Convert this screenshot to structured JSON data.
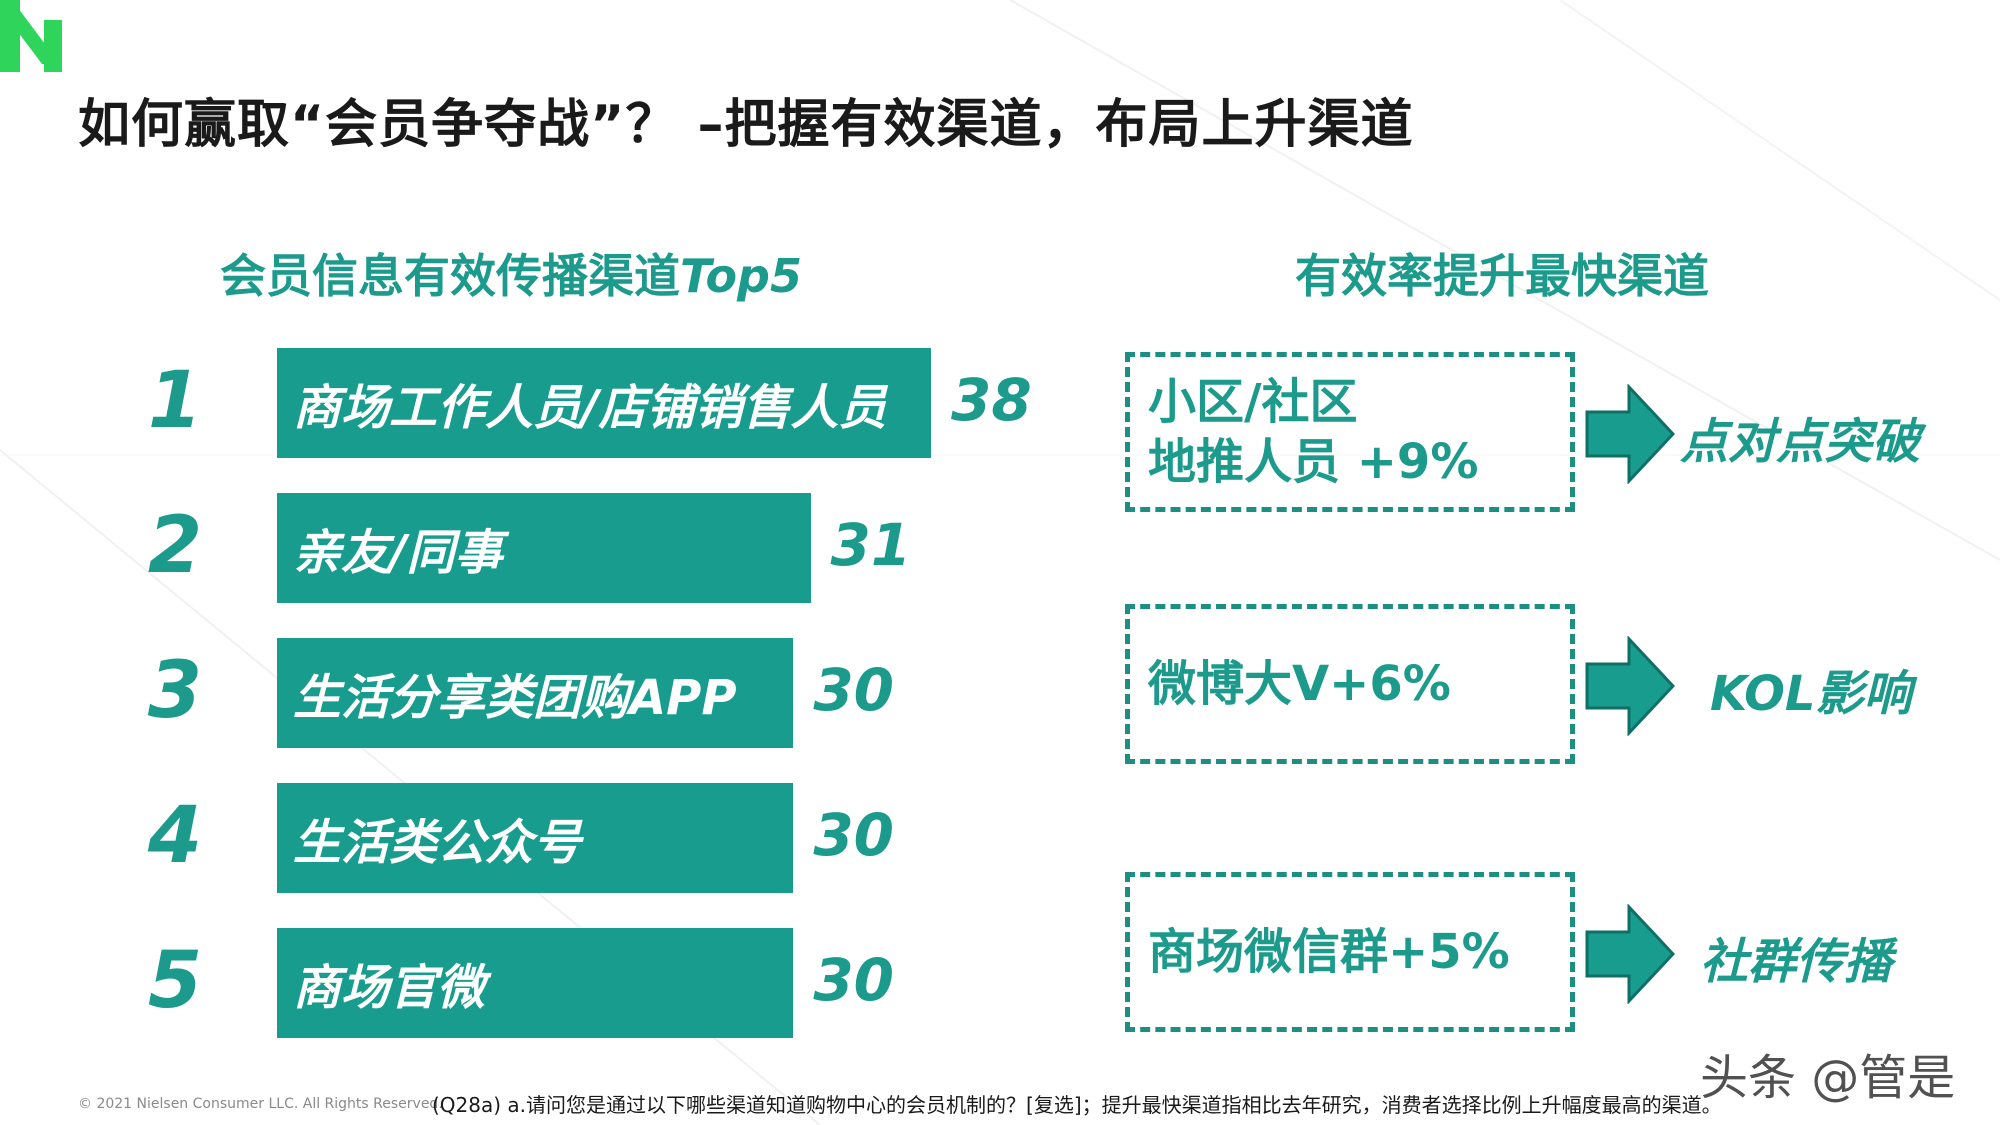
{
  "title": "如何赢取“会员争夺战”？ –把握有效渠道，布局上升渠道",
  "left_heading": {
    "cn": "会员信息有效传播渠道",
    "en": "Top5"
  },
  "right_heading": "有效率提升最快渠道",
  "chart_data": {
    "type": "bar",
    "orientation": "horizontal",
    "title": "会员信息有效传播渠道Top5",
    "ranks": [
      "1",
      "2",
      "3",
      "4",
      "5"
    ],
    "categories": [
      "商场工作人员/店铺销售人员",
      "亲友/同事",
      "生活分享类团购APP",
      "生活类公众号",
      "商场官微"
    ],
    "values": [
      38,
      31,
      30,
      30,
      30
    ],
    "value_labels": [
      "38",
      "31",
      "30",
      "30",
      "30"
    ],
    "bar_color": "#179c8e",
    "grid": false
  },
  "fastest_channels": [
    {
      "lines": [
        "小区/社区",
        "地推人员 +9%"
      ],
      "result": "点对点突破"
    },
    {
      "lines": [
        "微博大V+6%"
      ],
      "result": "KOL影响"
    },
    {
      "lines": [
        "商场微信群+5%"
      ],
      "result": "社群传播"
    }
  ],
  "footer": {
    "copyright": "© 2021 Nielsen Consumer LLC. All Rights Reserved.",
    "note": "(Q28a) a.请问您是通过以下哪些渠道知道购物中心的会员机制的？[复选]；提升最快渠道指相比去年研究，消费者选择比例上升幅度最高的渠道。"
  },
  "watermark": "头条 @管是",
  "colors": {
    "accent": "#1c9a8c",
    "logo": "#39d353"
  }
}
